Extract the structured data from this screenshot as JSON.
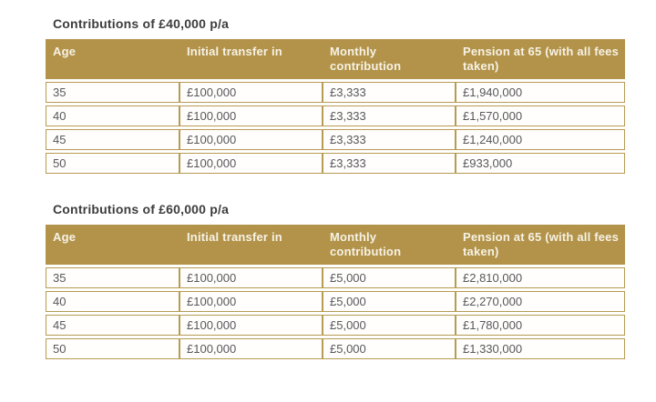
{
  "page": {
    "background": "#ffffff"
  },
  "theme": {
    "page_bg": "#ffffff",
    "gold": "#b29349",
    "border_gold": "#b69b53",
    "header_text_color": "#f7f2e6",
    "body_text_color": "#57585c",
    "title_color": "#3d3d3f"
  },
  "sections": [
    {
      "title": "Contributions of £40,000 p/a",
      "columns": [
        "Age",
        "Initial transfer in",
        "Monthly contribution",
        "Pension at 65 (with all fees taken)"
      ],
      "rows": [
        [
          "35",
          "£100,000",
          "£3,333",
          "£1,940,000"
        ],
        [
          "40",
          "£100,000",
          "£3,333",
          "£1,570,000"
        ],
        [
          "45",
          "£100,000",
          "£3,333",
          "£1,240,000"
        ],
        [
          "50",
          "£100,000",
          "£3,333",
          "£933,000"
        ]
      ]
    },
    {
      "title": "Contributions of £60,000 p/a",
      "columns": [
        "Age",
        "Initial transfer in",
        "Monthly contribution",
        "Pension at 65 (with all fees taken)"
      ],
      "rows": [
        [
          "35",
          "£100,000",
          "£5,000",
          "£2,810,000"
        ],
        [
          "40",
          "£100,000",
          "£5,000",
          "£2,270,000"
        ],
        [
          "45",
          "£100,000",
          "£5,000",
          "£1,780,000"
        ],
        [
          "50",
          "£100,000",
          "£5,000",
          "£1,330,000"
        ]
      ]
    }
  ]
}
